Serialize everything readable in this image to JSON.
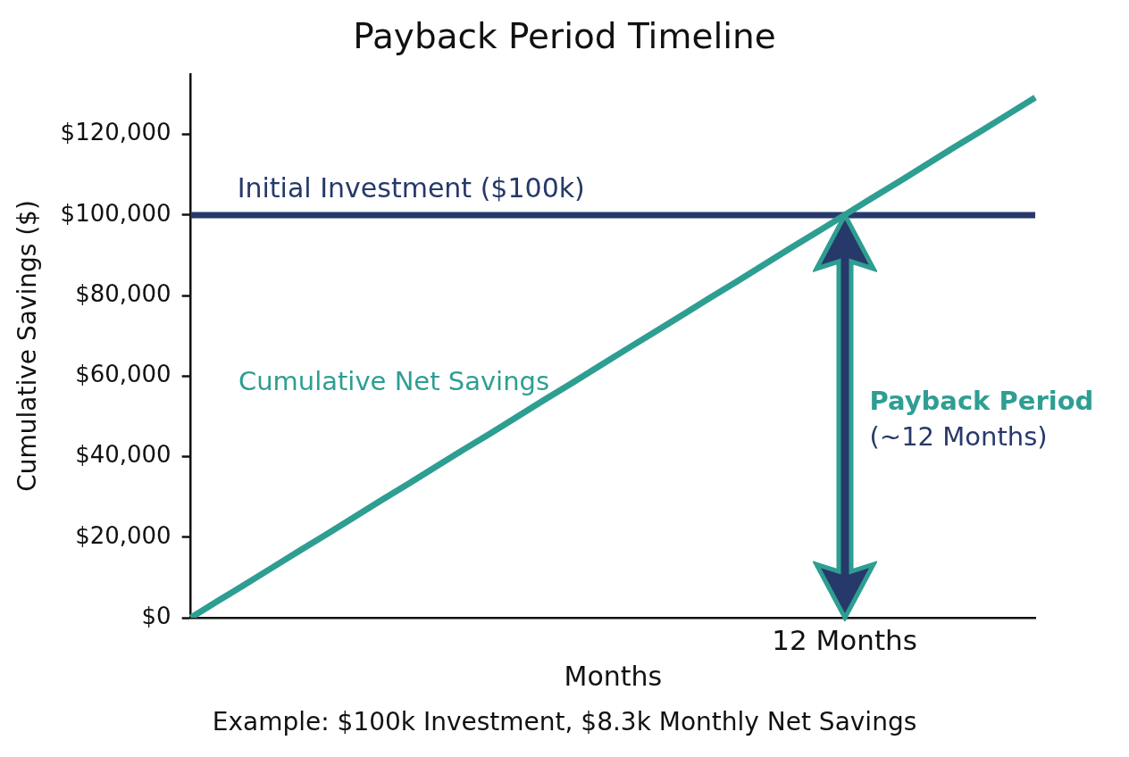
{
  "chart_data": {
    "type": "line",
    "title": "Payback Period Timeline",
    "xlabel": "Months",
    "ylabel": "Cumulative Savings ($)",
    "categories": [
      null,
      null,
      null,
      null,
      null,
      null,
      null,
      null,
      null,
      null,
      null,
      null,
      null,
      null,
      null,
      null,
      null,
      null,
      null,
      null,
      null,
      null,
      null,
      null,
      "12 Months",
      null,
      null,
      null,
      null,
      null,
      null,
      null
    ],
    "series": [
      {
        "name": "Cumulative Net Savings",
        "color": "#2e9e92",
        "values": [
          0,
          4200,
          8300,
          12500,
          16700,
          20800,
          25000,
          29200,
          33300,
          37500,
          41700,
          45800,
          50000,
          54200,
          58300,
          62500,
          66700,
          70800,
          75000,
          79200,
          83300,
          87500,
          91700,
          95800,
          100000,
          104200,
          108300,
          112500,
          116700,
          120800,
          125000,
          129200
        ]
      }
    ],
    "ylim": [
      0,
      135000
    ],
    "yticks": [
      {
        "value": 0,
        "label": "$0"
      },
      {
        "value": 20000,
        "label": "$20,000"
      },
      {
        "value": 40000,
        "label": "$40,000"
      },
      {
        "value": 60000,
        "label": "$60,000"
      },
      {
        "value": 80000,
        "label": "$80,000"
      },
      {
        "value": 100000,
        "label": "$100,000"
      },
      {
        "value": 120000,
        "label": "$120,000"
      }
    ],
    "ref_lines": [
      {
        "axis": "y",
        "value": 100000,
        "label": "Initial Investment ($100k)",
        "color": "#27396a"
      }
    ],
    "annotations": [
      "Payback Period",
      "(~12 Months)",
      "Example: $100k Investment, $8.3k Monthly Net Savings"
    ]
  }
}
